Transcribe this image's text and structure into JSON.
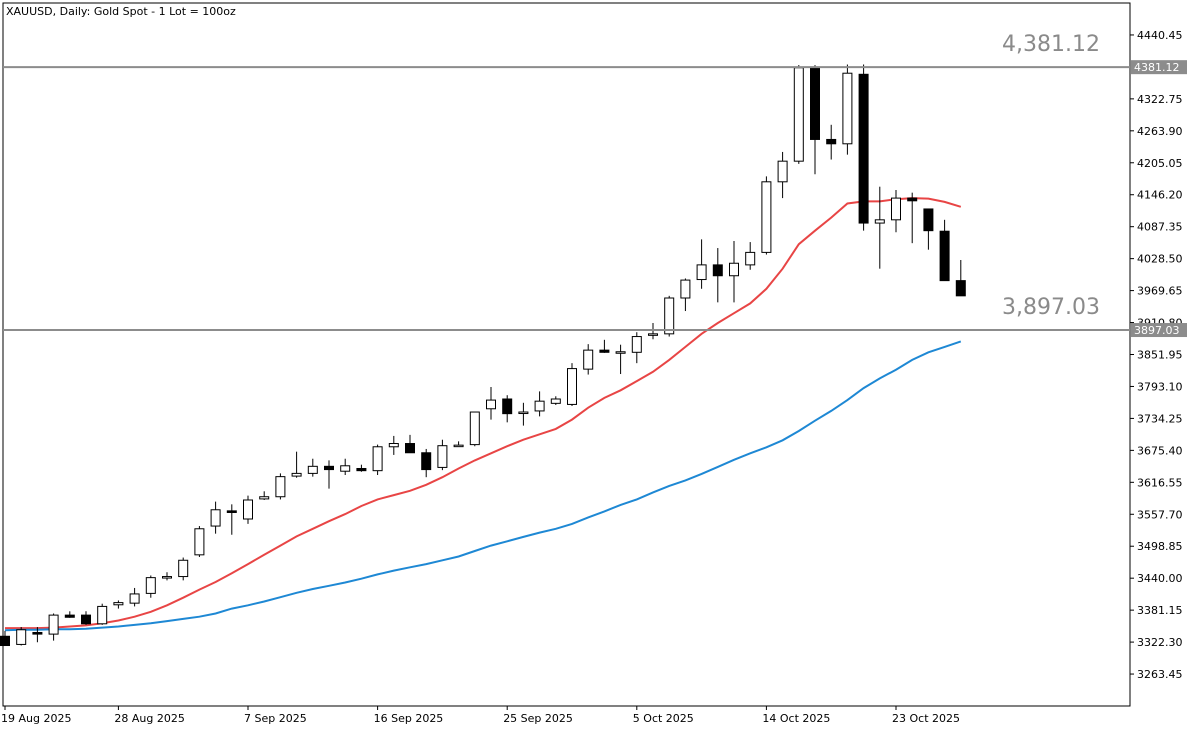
{
  "chart_data": {
    "type": "candlestick",
    "title": "XAUUSD, Daily:  Gold  Spot - 1 Lot = 100oz",
    "symbol": "XAUUSD",
    "timeframe": "Daily",
    "ylim": [
      3204.6,
      4499.3
    ],
    "y_ticks": [
      "4440.45",
      "4322.75",
      "4263.90",
      "4205.05",
      "4146.20",
      "4087.35",
      "4028.50",
      "3969.65",
      "3910.80",
      "3851.95",
      "3793.10",
      "3734.25",
      "3675.40",
      "3616.55",
      "3557.70",
      "3498.85",
      "3440.00",
      "3381.15",
      "3322.30",
      "3263.45"
    ],
    "x_ticks": [
      {
        "label": "19 Aug 2025",
        "index": 0
      },
      {
        "label": "28 Aug 2025",
        "index": 7
      },
      {
        "label": "7 Sep 2025",
        "index": 15
      },
      {
        "label": "16 Sep 2025",
        "index": 23
      },
      {
        "label": "25 Sep 2025",
        "index": 31
      },
      {
        "label": "5 Oct 2025",
        "index": 39
      },
      {
        "label": "14 Oct 2025",
        "index": 47
      },
      {
        "label": "23 Oct 2025",
        "index": 55
      }
    ],
    "candles": [
      [
        3333,
        3343,
        3316,
        3316
      ],
      [
        3318,
        3350,
        3316,
        3345
      ],
      [
        3340,
        3350,
        3322,
        3337
      ],
      [
        3337,
        3375,
        3325,
        3372
      ],
      [
        3372,
        3379,
        3367,
        3368
      ],
      [
        3372,
        3379,
        3354,
        3356
      ],
      [
        3356,
        3393,
        3354,
        3388
      ],
      [
        3391,
        3399,
        3384,
        3395
      ],
      [
        3394,
        3422,
        3388,
        3411
      ],
      [
        3412,
        3445,
        3404,
        3441
      ],
      [
        3442,
        3451,
        3436,
        3443
      ],
      [
        3443,
        3478,
        3436,
        3473
      ],
      [
        3483,
        3536,
        3479,
        3531
      ],
      [
        3536,
        3581,
        3522,
        3566
      ],
      [
        3564,
        3576,
        3520,
        3561
      ],
      [
        3549,
        3592,
        3540,
        3584
      ],
      [
        3586,
        3600,
        3584,
        3590
      ],
      [
        3590,
        3633,
        3585,
        3627
      ],
      [
        3628,
        3673,
        3625,
        3633
      ],
      [
        3633,
        3660,
        3627,
        3646
      ],
      [
        3646,
        3657,
        3605,
        3640
      ],
      [
        3637,
        3660,
        3630,
        3647
      ],
      [
        3642,
        3649,
        3636,
        3638
      ],
      [
        3638,
        3686,
        3630,
        3682
      ],
      [
        3682,
        3702,
        3667,
        3688
      ],
      [
        3688,
        3704,
        3673,
        3671
      ],
      [
        3671,
        3678,
        3626,
        3640
      ],
      [
        3644,
        3695,
        3639,
        3684
      ],
      [
        3684,
        3692,
        3682,
        3685
      ],
      [
        3686,
        3745,
        3683,
        3746
      ],
      [
        3752,
        3792,
        3732,
        3768
      ],
      [
        3770,
        3777,
        3727,
        3743
      ],
      [
        3745,
        3763,
        3721,
        3746
      ],
      [
        3748,
        3784,
        3738,
        3766
      ],
      [
        3762,
        3775,
        3759,
        3770
      ],
      [
        3760,
        3836,
        3757,
        3826
      ],
      [
        3825,
        3871,
        3815,
        3860
      ],
      [
        3860,
        3879,
        3855,
        3856
      ],
      [
        3857,
        3870,
        3816,
        3857
      ],
      [
        3856,
        3893,
        3836,
        3885
      ],
      [
        3888,
        3910,
        3880,
        3890
      ],
      [
        3890,
        3960,
        3885,
        3956
      ],
      [
        3956,
        3992,
        3932,
        3989
      ],
      [
        3990,
        4064,
        3973,
        4017
      ],
      [
        4017,
        4048,
        3948,
        3997
      ],
      [
        3997,
        4061,
        3948,
        4020
      ],
      [
        4017,
        4059,
        4008,
        4040
      ],
      [
        4040,
        4180,
        4036,
        4170
      ],
      [
        4170,
        4225,
        4140,
        4208
      ],
      [
        4208,
        4385,
        4203,
        4380
      ],
      [
        4380,
        4385,
        4184,
        4248
      ],
      [
        4248,
        4275,
        4211,
        4240
      ],
      [
        4240,
        4386,
        4220,
        4370
      ],
      [
        4368,
        4386,
        4080,
        4094
      ],
      [
        4094,
        4161,
        4010,
        4100
      ],
      [
        4100,
        4155,
        4077,
        4140
      ],
      [
        4140,
        4150,
        4057,
        4135
      ],
      [
        4120,
        4120,
        4045,
        4080
      ],
      [
        4079,
        4100,
        4000,
        3988
      ],
      [
        3988,
        4026,
        3968,
        3960
      ]
    ],
    "series": [
      {
        "name": "",
        "color": "#e84545",
        "values": [
          3348,
          3348,
          3348,
          3349,
          3351,
          3353,
          3357,
          3362,
          3369,
          3378,
          3390,
          3404,
          3419,
          3433,
          3449,
          3466,
          3483,
          3500,
          3517,
          3531,
          3545,
          3558,
          3573,
          3585,
          3593,
          3601,
          3612,
          3626,
          3642,
          3657,
          3670,
          3683,
          3695,
          3705,
          3715,
          3732,
          3754,
          3772,
          3786,
          3803,
          3820,
          3842,
          3866,
          3890,
          3910,
          3928,
          3946,
          3973,
          4010,
          4055,
          4080,
          4104,
          4130,
          4134,
          4134,
          4138,
          4140,
          4139,
          4133,
          4124
        ]
      },
      {
        "name": "",
        "color": "#1e88d4",
        "values": [
          3344,
          3345,
          3345,
          3346,
          3346,
          3347,
          3349,
          3351,
          3354,
          3357,
          3361,
          3365,
          3369,
          3375,
          3384,
          3390,
          3397,
          3405,
          3413,
          3420,
          3426,
          3432,
          3439,
          3447,
          3454,
          3460,
          3466,
          3473,
          3480,
          3490,
          3500,
          3508,
          3516,
          3524,
          3531,
          3540,
          3552,
          3563,
          3575,
          3585,
          3598,
          3610,
          3620,
          3632,
          3645,
          3658,
          3670,
          3681,
          3694,
          3711,
          3730,
          3748,
          3768,
          3790,
          3808,
          3824,
          3842,
          3856,
          3866,
          3876
        ]
      }
    ],
    "levels": [
      {
        "value": 4381.12,
        "price_label": "4,381.12",
        "badge_label": "4381.12"
      },
      {
        "value": 3897.03,
        "price_label": "3,897.03",
        "badge_label": "3897.03"
      }
    ],
    "grid": false,
    "legend": "none"
  }
}
